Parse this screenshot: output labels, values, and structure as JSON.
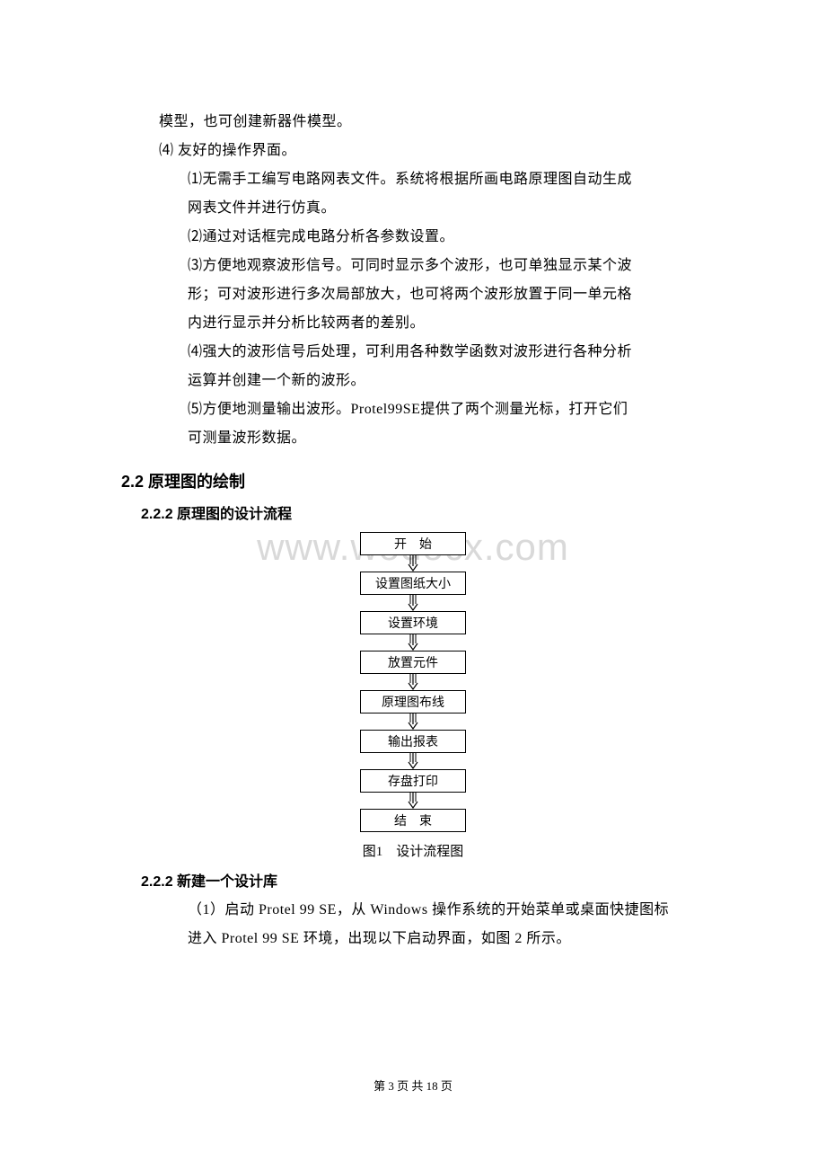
{
  "watermark": "www.wodocx.com",
  "body": {
    "p1": "模型，也可创建新器件模型。",
    "p2": "⑷ 友好的操作界面。",
    "p3a": "⑴无需手工编写电路网表文件。系统将根据所画电路原理图自动生成",
    "p3b": "网表文件并进行仿真。",
    "p4": "⑵通过对话框完成电路分析各参数设置。",
    "p5a": "⑶方便地观察波形信号。可同时显示多个波形，也可单独显示某个波",
    "p5b": "形；可对波形进行多次局部放大，也可将两个波形放置于同一单元格",
    "p5c": "内进行显示并分析比较两者的差别。",
    "p6a": "⑷强大的波形信号后处理，可利用各种数学函数对波形进行各种分析",
    "p6b": "运算并创建一个新的波形。",
    "p7a": "⑸方便地测量输出波形。Protel99SE提供了两个测量光标，打开它们",
    "p7b": "可测量波形数据。"
  },
  "h2_2": "2.2 原理图的绘制",
  "h2_2_2a": "2.2.2 原理图的设计流程",
  "flow": {
    "steps": [
      "开　始",
      "设置图纸大小",
      "设置环境",
      "放置元件",
      "原理图布线",
      "输出报表",
      "存盘打印",
      "结　束"
    ],
    "box_border": "#000000",
    "box_bg": "#ffffff",
    "arrow_color": "#000000"
  },
  "caption": "图1　设计流程图",
  "h2_2_2b": "2.2.2 新建一个设计库",
  "body2": {
    "p1": "（1）启动 Protel 99 SE，从 Windows 操作系统的开始菜单或桌面快捷图标",
    "p2": "进入 Protel 99 SE 环境，出现以下启动界面，如图 2 所示。"
  },
  "footer": "第 3 页 共 18 页"
}
